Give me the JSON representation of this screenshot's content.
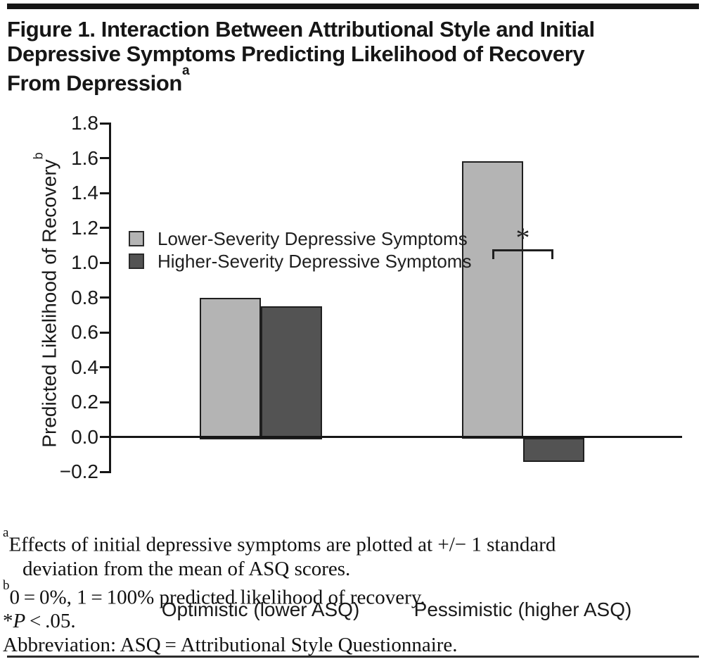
{
  "figure": {
    "title_line1": "Figure 1. Interaction Between Attributional Style and Initial",
    "title_line2": "Depressive Symptoms Predicting Likelihood of Recovery",
    "title_line3": "From Depression",
    "title_line3_sup": "a"
  },
  "chart_data": {
    "type": "bar",
    "categories": [
      "Optimistic (lower ASQ)",
      "Pessimistic (higher ASQ)"
    ],
    "series": [
      {
        "name": "Lower-Severity Depressive Symptoms",
        "color": "#b4b4b4",
        "values": [
          0.8,
          1.58
        ]
      },
      {
        "name": "Higher-Severity Depressive Symptoms",
        "color": "#535353",
        "values": [
          0.75,
          -0.13
        ]
      }
    ],
    "ylabel": "Predicted Likelihood of Recovery",
    "ylabel_sup": "b",
    "ylim": [
      -0.2,
      1.8
    ],
    "ytick_step": 0.2,
    "grid": false,
    "legend_position": "top-left",
    "bar_edge_color": "#1f1f1f",
    "annotation": {
      "text": "*",
      "category_index": 1,
      "meaning": "significant difference between series"
    }
  },
  "footnotes": {
    "a_sup": "a",
    "a_line1": "Effects of initial depressive symptoms are plotted at +/− 1 standard",
    "a_line2": "deviation from the mean of ASQ scores.",
    "b_sup": "b",
    "b_text": "0 = 0%, 1 = 100% predicted likelihood of recovery.",
    "sig_star": "*",
    "sig_p": "P",
    "sig_rest": " < .05.",
    "abbreviation": "Abbreviation: ASQ = Attributional Style Questionnaire."
  }
}
